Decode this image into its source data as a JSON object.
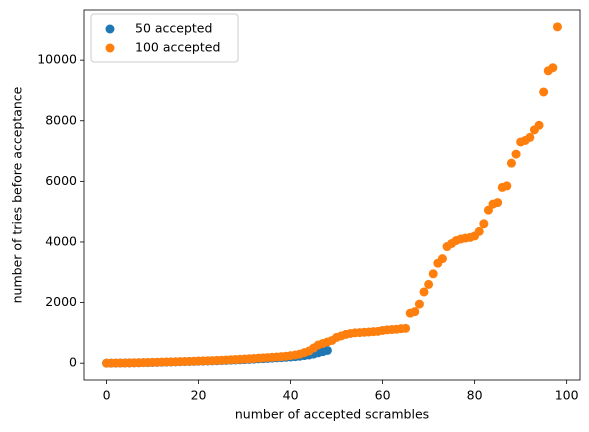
{
  "chart_data": {
    "type": "scatter",
    "x_label": "number of accepted scrambles",
    "y_label": "number of tries before acceptance",
    "xlim": [
      -4.9,
      102.9
    ],
    "xticks": [
      0,
      20,
      40,
      60,
      80,
      100
    ],
    "ylim": [
      -555,
      11655
    ],
    "yticks": [
      0,
      2000,
      4000,
      6000,
      8000,
      10000
    ],
    "grid": false,
    "legend": "upper-left",
    "series": [
      {
        "name": "50 accepted",
        "color": "#1f77b4",
        "x": [
          0,
          1,
          2,
          3,
          4,
          5,
          6,
          7,
          8,
          9,
          10,
          11,
          12,
          13,
          14,
          15,
          16,
          17,
          18,
          19,
          20,
          21,
          22,
          23,
          24,
          25,
          26,
          27,
          28,
          29,
          30,
          31,
          32,
          33,
          34,
          35,
          36,
          37,
          38,
          39,
          40,
          41,
          42,
          43,
          44,
          45,
          46,
          47,
          48
        ],
        "values": [
          0,
          1,
          3,
          5,
          7,
          9,
          11,
          14,
          17,
          20,
          24,
          28,
          32,
          36,
          40,
          44,
          48,
          52,
          56,
          60,
          64,
          68,
          72,
          77,
          82,
          87,
          93,
          99,
          105,
          112,
          119,
          126,
          134,
          142,
          150,
          158,
          167,
          176,
          185,
          195,
          205,
          215,
          230,
          250,
          270,
          300,
          340,
          380,
          420
        ]
      },
      {
        "name": "100 accepted",
        "color": "#ff7f0e",
        "x": [
          0,
          1,
          2,
          3,
          4,
          5,
          6,
          7,
          8,
          9,
          10,
          11,
          12,
          13,
          14,
          15,
          16,
          17,
          18,
          19,
          20,
          21,
          22,
          23,
          24,
          25,
          26,
          27,
          28,
          29,
          30,
          31,
          32,
          33,
          34,
          35,
          36,
          37,
          38,
          39,
          40,
          41,
          42,
          43,
          44,
          45,
          46,
          47,
          48,
          49,
          50,
          51,
          52,
          53,
          54,
          55,
          56,
          57,
          58,
          59,
          60,
          61,
          62,
          63,
          64,
          65,
          66,
          67,
          68,
          69,
          70,
          71,
          72,
          73,
          74,
          75,
          76,
          77,
          78,
          79,
          80,
          81,
          82,
          83,
          84,
          85,
          86,
          87,
          88,
          89,
          90,
          91,
          92,
          93,
          94,
          95,
          96,
          97,
          98
        ],
        "values": [
          0,
          2,
          4,
          6,
          8,
          10,
          13,
          16,
          20,
          24,
          28,
          32,
          36,
          40,
          44,
          48,
          52,
          56,
          60,
          65,
          70,
          75,
          80,
          86,
          92,
          98,
          105,
          112,
          120,
          128,
          136,
          145,
          155,
          165,
          175,
          185,
          195,
          205,
          215,
          230,
          250,
          270,
          300,
          350,
          400,
          500,
          600,
          650,
          700,
          750,
          850,
          900,
          950,
          980,
          1000,
          1010,
          1020,
          1030,
          1040,
          1050,
          1080,
          1100,
          1110,
          1120,
          1140,
          1150,
          1650,
          1700,
          1950,
          2350,
          2600,
          2950,
          3300,
          3450,
          3850,
          3950,
          4050,
          4100,
          4130,
          4150,
          4200,
          4350,
          4600,
          5050,
          5250,
          5300,
          5800,
          5850,
          6600,
          6900,
          7300,
          7350,
          7450,
          7700,
          7850,
          8950,
          9650,
          9750,
          11100
        ]
      }
    ]
  }
}
